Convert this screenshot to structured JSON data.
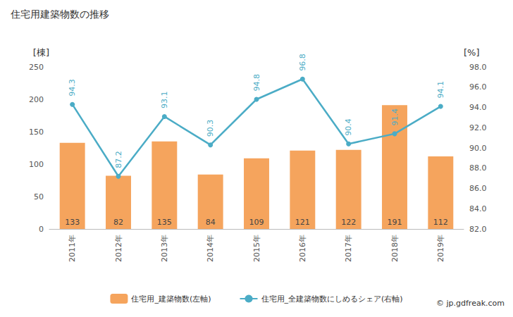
{
  "chart_data": {
    "type": "bar",
    "title": "住宅用建築物数の推移",
    "y_label": "[棟]",
    "y2_label": "[%]",
    "source": "© jp.gdfreak.com",
    "categories": [
      "2011年",
      "2012年",
      "2013年",
      "2014年",
      "2015年",
      "2016年",
      "2017年",
      "2018年",
      "2019年"
    ],
    "series": [
      {
        "name": "住宅用_建築物数(左軸)",
        "type": "bar",
        "color": "#f5a45d",
        "values": [
          133,
          82,
          135,
          84,
          109,
          121,
          122,
          191,
          112
        ],
        "data_labels": true
      },
      {
        "name": "住宅用_全建築物数にしめるシェア(右軸)",
        "type": "line",
        "axis": "y2",
        "color": "#4bacc6",
        "marker": "circle",
        "values": [
          94.3,
          87.2,
          93.1,
          90.3,
          94.8,
          96.8,
          90.4,
          91.4,
          94.1
        ],
        "data_labels": true
      }
    ],
    "ylim": [
      0,
      250
    ],
    "yticks": [
      0,
      50,
      100,
      150,
      200,
      250
    ],
    "y2lim": [
      82,
      98
    ],
    "y2ticks": [
      {
        "value": 82,
        "label": "82.0"
      },
      {
        "value": 84,
        "label": "84.0"
      },
      {
        "value": 86,
        "label": "86.0"
      },
      {
        "value": 88,
        "label": "88.0"
      },
      {
        "value": 90,
        "label": "90.0"
      },
      {
        "value": 92,
        "label": "92.0"
      },
      {
        "value": 94,
        "label": "94.0"
      },
      {
        "value": 96,
        "label": "96.0"
      },
      {
        "value": 98,
        "label": "98.0"
      }
    ],
    "grid": false,
    "legend": "bottom"
  }
}
